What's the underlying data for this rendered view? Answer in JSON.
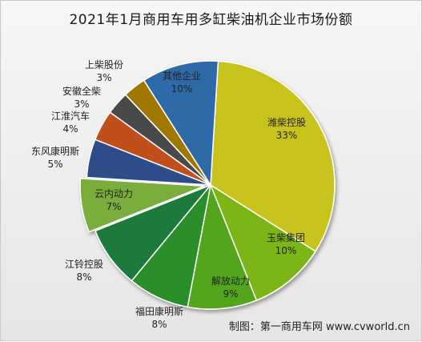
{
  "chart_data": {
    "type": "pie",
    "title": "2021年1月商用车用多缸柴油机企业市场份额",
    "start_label": "潍柴控股",
    "slices": [
      {
        "name": "潍柴控股",
        "pct_label": "33%",
        "value": 33,
        "color": "#c8c31d"
      },
      {
        "name": "玉柴集团",
        "pct_label": "10%",
        "value": 10,
        "color": "#7cb618"
      },
      {
        "name": "解放动力",
        "pct_label": "9%",
        "value": 9,
        "color": "#52a61a"
      },
      {
        "name": "福田康明斯",
        "pct_label": "8%",
        "value": 8,
        "color": "#2a8e2a"
      },
      {
        "name": "江铃控股",
        "pct_label": "8%",
        "value": 8,
        "color": "#1e7a3e"
      },
      {
        "name": "云内动力",
        "pct_label": "7%",
        "value": 7,
        "color": "#7aad3a"
      },
      {
        "name": "东风康明斯",
        "pct_label": "5%",
        "value": 5,
        "color": "#2d4b8a"
      },
      {
        "name": "江淮汽车",
        "pct_label": "4%",
        "value": 4,
        "color": "#c0501a"
      },
      {
        "name": "安徽全柴",
        "pct_label": "3%",
        "value": 3,
        "color": "#4a4a4a"
      },
      {
        "name": "上柴股份",
        "pct_label": "3%",
        "value": 3,
        "color": "#a07800"
      },
      {
        "name": "其他企业",
        "pct_label": "10%",
        "value": 10,
        "color": "#2e6aa8"
      }
    ]
  },
  "credit": "制图：第一商用车网 www.cvworld.cn"
}
